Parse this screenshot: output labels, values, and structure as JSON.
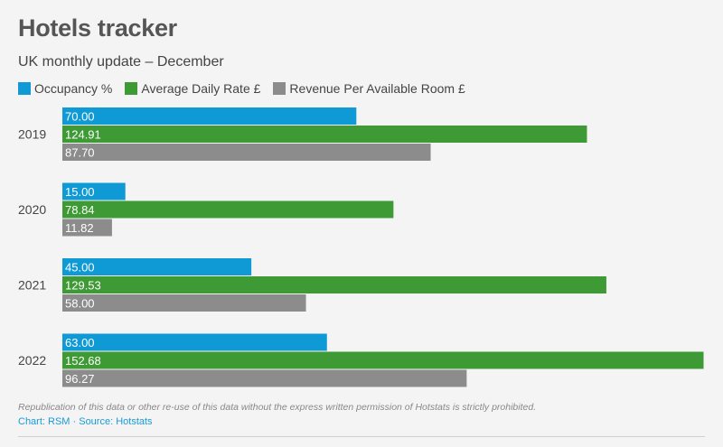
{
  "chart_data": {
    "type": "bar",
    "orientation": "horizontal",
    "title": "Hotels tracker",
    "subtitle": "UK monthly update – December",
    "categories": [
      "2019",
      "2020",
      "2021",
      "2022"
    ],
    "series": [
      {
        "name": "Occupancy %",
        "color": "#0f9ad6",
        "values": [
          70.0,
          15.0,
          45.0,
          63.0
        ]
      },
      {
        "name": "Average Daily Rate £",
        "color": "#3e9a35",
        "values": [
          124.91,
          78.84,
          129.53,
          152.68
        ]
      },
      {
        "name": "Revenue Per Available Room £",
        "color": "#8c8c8c",
        "values": [
          87.7,
          11.82,
          58.0,
          96.27
        ]
      }
    ],
    "xlim": [
      0,
      153
    ],
    "legend_position": "top-left",
    "grid": false
  },
  "footer": {
    "note": "Republication of this data or other re-use of this data without the express written permission of Hotstats is strictly prohibited.",
    "source": "Chart: RSM · Source: Hotstats"
  }
}
